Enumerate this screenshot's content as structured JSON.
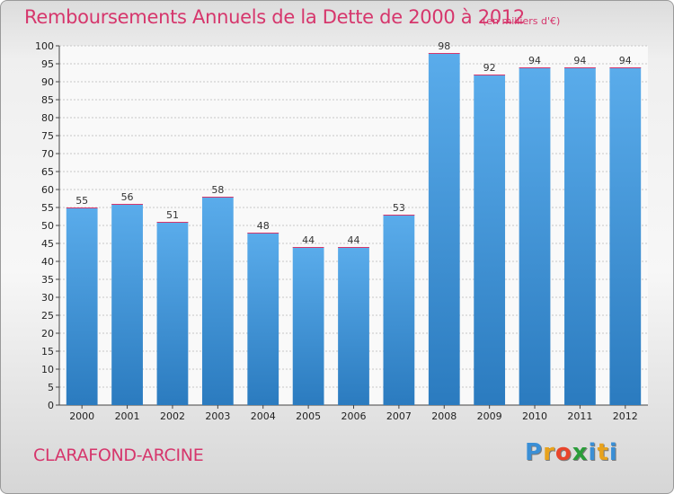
{
  "header": {
    "title": "Remboursements Annuels de la Dette de 2000 à 2012",
    "subtitle": "(en milliers d'€)"
  },
  "footer": {
    "commune": "CLARAFOND-ARCINE",
    "logo_letters": [
      "P",
      "r",
      "o",
      "x",
      "i",
      "t",
      "i"
    ],
    "logo_colors": [
      "#3a8fd6",
      "#e8a21c",
      "#e8452c",
      "#2a9d3a",
      "#3a8fd6",
      "#e8a21c",
      "#3a8fd6"
    ]
  },
  "colors": {
    "bar_top": "#5aaceb",
    "bar_bottom": "#2b7bbf",
    "title": "#d6366c"
  },
  "chart_data": {
    "type": "bar",
    "title": "Remboursements Annuels de la Dette de 2000 à 2012",
    "subtitle": "(en milliers d'€)",
    "categories": [
      "2000",
      "2001",
      "2002",
      "2003",
      "2004",
      "2005",
      "2006",
      "2007",
      "2008",
      "2009",
      "2010",
      "2011",
      "2012"
    ],
    "values": [
      55,
      56,
      51,
      58,
      48,
      44,
      44,
      53,
      98,
      92,
      94,
      94,
      94
    ],
    "ylim": [
      0,
      100
    ],
    "ytick_step": 5,
    "grid": true,
    "legend": "none"
  }
}
